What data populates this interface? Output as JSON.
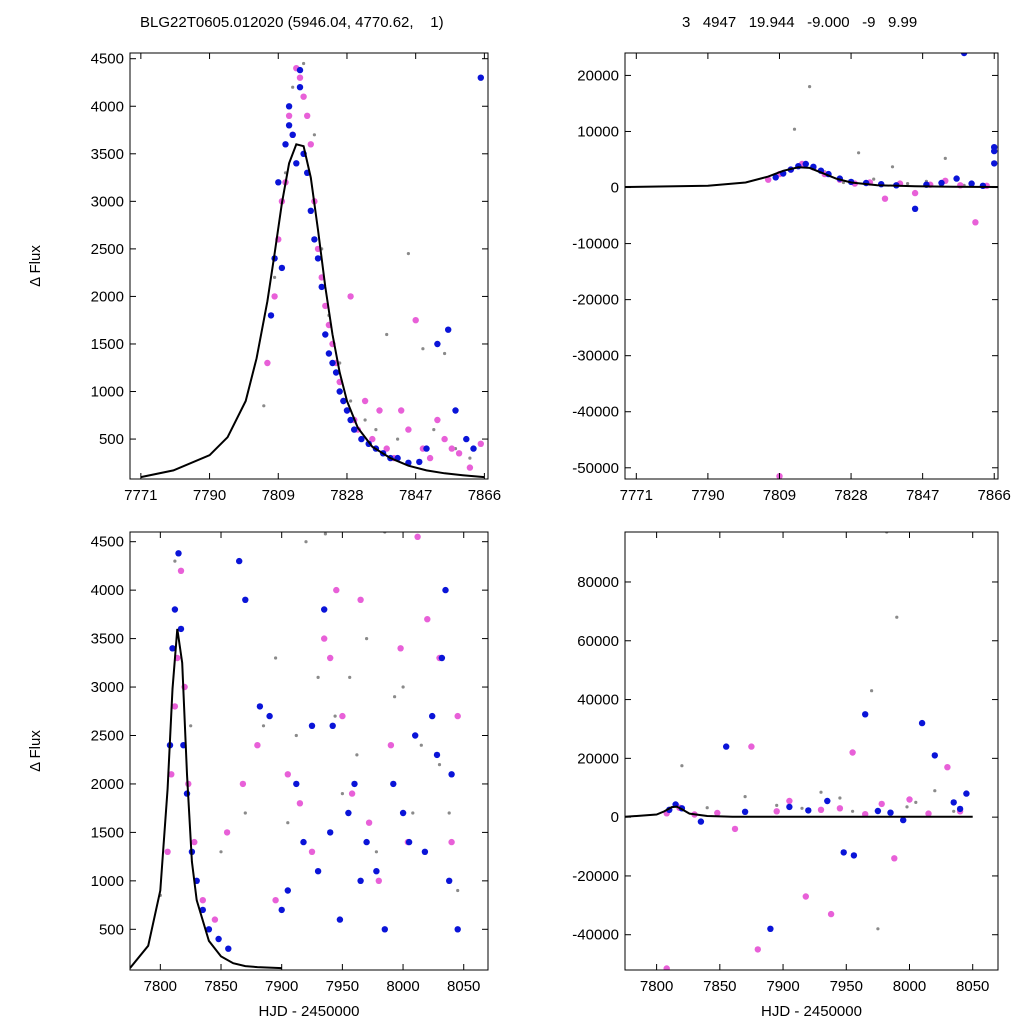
{
  "header": {
    "left": "BLG22T0605.012020 (5946.04, 4770.62,    1)",
    "right": "3   4947   19.944   -9.000   -9   9.99"
  },
  "colors": {
    "model": "#000000",
    "series_a": "#0a14d8",
    "series_b": "#e860d8",
    "series_c": "#8a8a8a"
  },
  "chart_data": [
    {
      "type": "scatter",
      "panel": "top-left",
      "ylabel": "Δ Flux",
      "xlabel": "",
      "xlim": [
        7768,
        7867
      ],
      "ylim": [
        80,
        4560
      ],
      "xticks": [
        7771,
        7790,
        7809,
        7828,
        7847,
        7866
      ],
      "yticks": [
        500,
        1000,
        1500,
        2000,
        2500,
        3000,
        3500,
        4000,
        4500
      ],
      "model": {
        "x": [
          7771,
          7780,
          7790,
          7795,
          7800,
          7803,
          7806,
          7808,
          7810,
          7812,
          7814,
          7816,
          7818,
          7820,
          7822,
          7824,
          7826,
          7828,
          7831,
          7835,
          7840,
          7845,
          7850,
          7855,
          7860,
          7866
        ],
        "y": [
          100,
          170,
          330,
          520,
          900,
          1350,
          1950,
          2450,
          2980,
          3400,
          3600,
          3580,
          3250,
          2700,
          2100,
          1600,
          1200,
          900,
          620,
          420,
          300,
          220,
          170,
          140,
          120,
          100
        ]
      },
      "series": [
        {
          "x": [
            7807,
            7808,
            7809,
            7810,
            7811,
            7812,
            7812,
            7813,
            7814,
            7815,
            7815,
            7816,
            7817,
            7818,
            7819,
            7820,
            7821,
            7822,
            7823,
            7824,
            7825,
            7826,
            7827,
            7828,
            7829,
            7830,
            7832,
            7834,
            7836,
            7838,
            7840,
            7842,
            7845,
            7848,
            7850,
            7853,
            7856,
            7858,
            7861,
            7863,
            7865
          ],
          "y": [
            1800,
            2400,
            3200,
            2300,
            3600,
            3800,
            4000,
            3700,
            3400,
            4200,
            4380,
            3500,
            3300,
            2900,
            2600,
            2400,
            2100,
            1600,
            1400,
            1300,
            1200,
            1000,
            900,
            800,
            700,
            600,
            500,
            450,
            400,
            350,
            300,
            300,
            250,
            260,
            400,
            1500,
            1650,
            800,
            500,
            400,
            4300
          ]
        },
        {
          "x": [
            7806,
            7808,
            7809,
            7810,
            7811,
            7812,
            7813,
            7814,
            7815,
            7816,
            7817,
            7818,
            7819,
            7820,
            7821,
            7822,
            7823,
            7824,
            7825,
            7826,
            7827,
            7828,
            7829,
            7830,
            7831,
            7833,
            7835,
            7837,
            7839,
            7841,
            7843,
            7845,
            7847,
            7849,
            7851,
            7853,
            7855,
            7857,
            7859,
            7862,
            7865
          ],
          "y": [
            1300,
            2000,
            2600,
            3000,
            3200,
            3900,
            3700,
            4400,
            4300,
            4100,
            3900,
            3600,
            3000,
            2500,
            2200,
            1900,
            1700,
            1500,
            1300,
            1100,
            900,
            800,
            2000,
            700,
            600,
            900,
            500,
            800,
            400,
            300,
            800,
            600,
            1750,
            400,
            300,
            700,
            500,
            400,
            350,
            200,
            450
          ]
        },
        {
          "x": [
            7805,
            7808,
            7811,
            7813,
            7816,
            7819,
            7821,
            7823,
            7826,
            7829,
            7833,
            7836,
            7839,
            7842,
            7845,
            7849,
            7852,
            7855,
            7858,
            7862
          ],
          "y": [
            850,
            2200,
            3300,
            4200,
            4450,
            3700,
            2500,
            1800,
            1300,
            900,
            700,
            600,
            1600,
            500,
            2450,
            1450,
            600,
            1400,
            400,
            300
          ]
        }
      ]
    },
    {
      "type": "scatter",
      "panel": "top-right",
      "ylabel": "",
      "xlabel": "",
      "xlim": [
        7768,
        7867
      ],
      "ylim": [
        -52000,
        24000
      ],
      "xticks": [
        7771,
        7790,
        7809,
        7828,
        7847,
        7866
      ],
      "yticks": [
        -50000,
        -40000,
        -30000,
        -20000,
        -10000,
        0,
        10000,
        20000
      ],
      "model": {
        "x": [
          7768,
          7790,
          7800,
          7806,
          7810,
          7814,
          7817,
          7820,
          7824,
          7828,
          7835,
          7845,
          7855,
          7867
        ],
        "y": [
          100,
          330,
          900,
          1950,
          2980,
          3600,
          3500,
          2700,
          1600,
          900,
          420,
          220,
          140,
          100
        ]
      },
      "series": [
        {
          "x": [
            7808,
            7810,
            7812,
            7814,
            7816,
            7818,
            7820,
            7822,
            7825,
            7828,
            7832,
            7836,
            7840,
            7845,
            7848,
            7852,
            7856,
            7858,
            7860,
            7863,
            7866,
            7866,
            7866
          ],
          "y": [
            1800,
            2500,
            3200,
            3800,
            4200,
            3700,
            3000,
            2400,
            1600,
            1000,
            800,
            600,
            400,
            -3800,
            500,
            800,
            1600,
            24000,
            700,
            300,
            4300,
            6500,
            7200
          ]
        },
        {
          "x": [
            7806,
            7809,
            7812,
            7815,
            7818,
            7821,
            7825,
            7829,
            7833,
            7837,
            7841,
            7845,
            7849,
            7853,
            7857,
            7861,
            7864,
            7809
          ],
          "y": [
            1400,
            2400,
            3200,
            4200,
            3600,
            2400,
            1400,
            700,
            900,
            -2000,
            700,
            -1000,
            500,
            1200,
            400,
            -6200,
            300,
            -51500
          ]
        },
        {
          "x": [
            7808,
            7813,
            7817,
            7821,
            7826,
            7830,
            7834,
            7839,
            7843,
            7848,
            7853,
            7858
          ],
          "y": [
            2200,
            10400,
            18000,
            2800,
            900,
            6200,
            1500,
            3700,
            700,
            1100,
            5200,
            400
          ]
        }
      ]
    },
    {
      "type": "scatter",
      "panel": "bottom-left",
      "ylabel": "Δ Flux",
      "xlabel": "HJD - 2450000",
      "xlim": [
        7775,
        8070
      ],
      "ylim": [
        80,
        4600
      ],
      "xticks": [
        7800,
        7850,
        7900,
        7950,
        8000,
        8050
      ],
      "yticks": [
        500,
        1000,
        1500,
        2000,
        2500,
        3000,
        3500,
        4000,
        4500
      ],
      "model": {
        "x": [
          7775,
          7790,
          7800,
          7806,
          7810,
          7814,
          7818,
          7822,
          7826,
          7830,
          7840,
          7850,
          7860,
          7870,
          7880,
          7900
        ],
        "y": [
          100,
          330,
          900,
          1950,
          2980,
          3600,
          3250,
          2100,
          1200,
          800,
          380,
          220,
          150,
          120,
          110,
          100
        ]
      },
      "series": [
        {
          "x": [
            7808,
            7810,
            7812,
            7815,
            7817,
            7819,
            7822,
            7826,
            7830,
            7835,
            7840,
            7848,
            7856,
            7865,
            7870,
            7882,
            7890,
            7900,
            7905,
            7912,
            7918,
            7925,
            7930,
            7935,
            7940,
            7942,
            7948,
            7955,
            7960,
            7965,
            7970,
            7978,
            7985,
            7992,
            8000,
            8005,
            8010,
            8018,
            8024,
            8028,
            8032,
            8035,
            8038,
            8040,
            8045
          ],
          "y": [
            2400,
            3400,
            3800,
            4380,
            3600,
            2400,
            1900,
            1300,
            1000,
            700,
            500,
            400,
            300,
            4300,
            3900,
            2800,
            2700,
            700,
            900,
            2000,
            1400,
            2600,
            1100,
            3800,
            1500,
            2600,
            600,
            1700,
            2000,
            1000,
            1400,
            1100,
            500,
            2000,
            1700,
            1400,
            2500,
            1300,
            2700,
            2300,
            3300,
            4000,
            1000,
            2100,
            500
          ]
        },
        {
          "x": [
            7806,
            7809,
            7812,
            7814,
            7817,
            7820,
            7823,
            7828,
            7835,
            7845,
            7855,
            7868,
            7880,
            7895,
            7905,
            7915,
            7925,
            7935,
            7940,
            7945,
            7950,
            7958,
            7965,
            7972,
            7980,
            7990,
            7998,
            8004,
            8012,
            8020,
            8030,
            8040,
            8045
          ],
          "y": [
            1300,
            2100,
            2800,
            3300,
            4200,
            3000,
            2000,
            1400,
            800,
            600,
            1500,
            2000,
            2400,
            800,
            2100,
            1800,
            1300,
            3500,
            3300,
            4000,
            2700,
            1900,
            3900,
            1600,
            1000,
            2400,
            3400,
            1400,
            4550,
            3700,
            3300,
            1400,
            2700
          ]
        },
        {
          "x": [
            7800,
            7812,
            7825,
            7850,
            7870,
            7885,
            7895,
            7905,
            7912,
            7920,
            7930,
            7936,
            7944,
            7950,
            7956,
            7962,
            7970,
            7978,
            7985,
            7993,
            8000,
            8008,
            8015,
            8023,
            8030,
            8038,
            8045
          ],
          "y": [
            850,
            4300,
            2600,
            1300,
            1700,
            2600,
            3300,
            1600,
            2500,
            4500,
            3100,
            4580,
            2700,
            1900,
            3100,
            2300,
            3500,
            1300,
            4600,
            2900,
            3000,
            1700,
            2400,
            2700,
            2200,
            1700,
            900
          ]
        }
      ]
    },
    {
      "type": "scatter",
      "panel": "bottom-right",
      "ylabel": "",
      "xlabel": "HJD - 2450000",
      "xlim": [
        7775,
        8070
      ],
      "ylim": [
        -52000,
        97000
      ],
      "xticks": [
        7800,
        7850,
        7900,
        7950,
        8000,
        8050
      ],
      "yticks": [
        -40000,
        -20000,
        0,
        20000,
        40000,
        60000,
        80000
      ],
      "model": {
        "x": [
          7775,
          7800,
          7806,
          7812,
          7816,
          7820,
          7826,
          7840,
          7860,
          7900,
          8050
        ],
        "y": [
          100,
          900,
          1950,
          3400,
          3600,
          2700,
          1200,
          380,
          150,
          100,
          100
        ]
      },
      "series": [
        {
          "x": [
            7810,
            7815,
            7820,
            7835,
            7855,
            7870,
            7890,
            7905,
            7920,
            7935,
            7948,
            7956,
            7965,
            7975,
            7985,
            7995,
            8010,
            8020,
            8035,
            8040,
            8045
          ],
          "y": [
            2500,
            4300,
            3000,
            -1500,
            24000,
            1800,
            -38000,
            3500,
            2300,
            5500,
            -12000,
            -13000,
            35000,
            2100,
            1500,
            -1000,
            32000,
            21000,
            5000,
            2800,
            8000
          ]
        },
        {
          "x": [
            7808,
            7818,
            7830,
            7848,
            7862,
            7875,
            7880,
            7895,
            7905,
            7918,
            7930,
            7938,
            7945,
            7955,
            7965,
            7978,
            7988,
            8000,
            8015,
            8030,
            8040,
            7808
          ],
          "y": [
            1300,
            3200,
            900,
            1400,
            -4000,
            24000,
            -45000,
            2000,
            5500,
            -27000,
            2500,
            -33000,
            3000,
            22000,
            1000,
            4500,
            -14000,
            6000,
            1200,
            17000,
            2000,
            -51500
          ]
        },
        {
          "x": [
            7820,
            7840,
            7870,
            7895,
            7915,
            7930,
            7945,
            7955,
            7970,
            7975,
            7982,
            7990,
            7998,
            8005,
            8020,
            8035
          ],
          "y": [
            17500,
            3200,
            7000,
            4000,
            3000,
            8500,
            6500,
            2000,
            43000,
            -38000,
            97000,
            68000,
            3500,
            5000,
            9000,
            2000
          ]
        }
      ]
    }
  ]
}
